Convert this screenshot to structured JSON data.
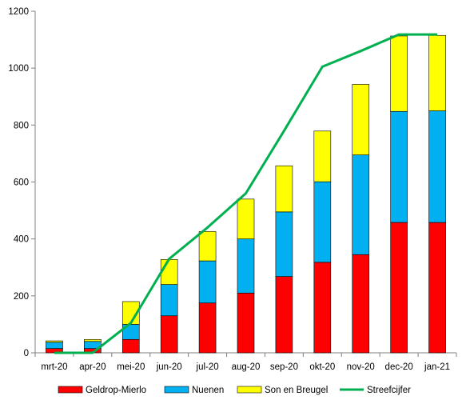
{
  "chart_data": {
    "type": "bar",
    "stacked": true,
    "categories": [
      "mrt-20",
      "apr-20",
      "mei-20",
      "jun-20",
      "jul-20",
      "aug-20",
      "sep-20",
      "okt-20",
      "nov-20",
      "dec-20",
      "jan-21"
    ],
    "series": [
      {
        "name": "Geldrop-Mierlo",
        "color": "#ff0000",
        "values": [
          15,
          15,
          47,
          130,
          175,
          210,
          268,
          318,
          345,
          458,
          458
        ]
      },
      {
        "name": "Nuenen",
        "color": "#00b0f0",
        "values": [
          22,
          25,
          53,
          110,
          148,
          190,
          227,
          283,
          350,
          390,
          392
        ]
      },
      {
        "name": "Son en Breugel",
        "color": "#ffff00",
        "values": [
          5,
          7,
          80,
          88,
          103,
          140,
          162,
          178,
          248,
          265,
          265
        ]
      }
    ],
    "line": {
      "name": "Streefcijfer",
      "color": "#00b050",
      "values": [
        0,
        0,
        105,
        330,
        440,
        560,
        780,
        1005,
        1060,
        1118,
        1118
      ]
    },
    "ylim": [
      0,
      1200
    ],
    "yticks": [
      0,
      200,
      400,
      600,
      800,
      1000,
      1200
    ],
    "grid": false,
    "legend_position": "bottom"
  }
}
